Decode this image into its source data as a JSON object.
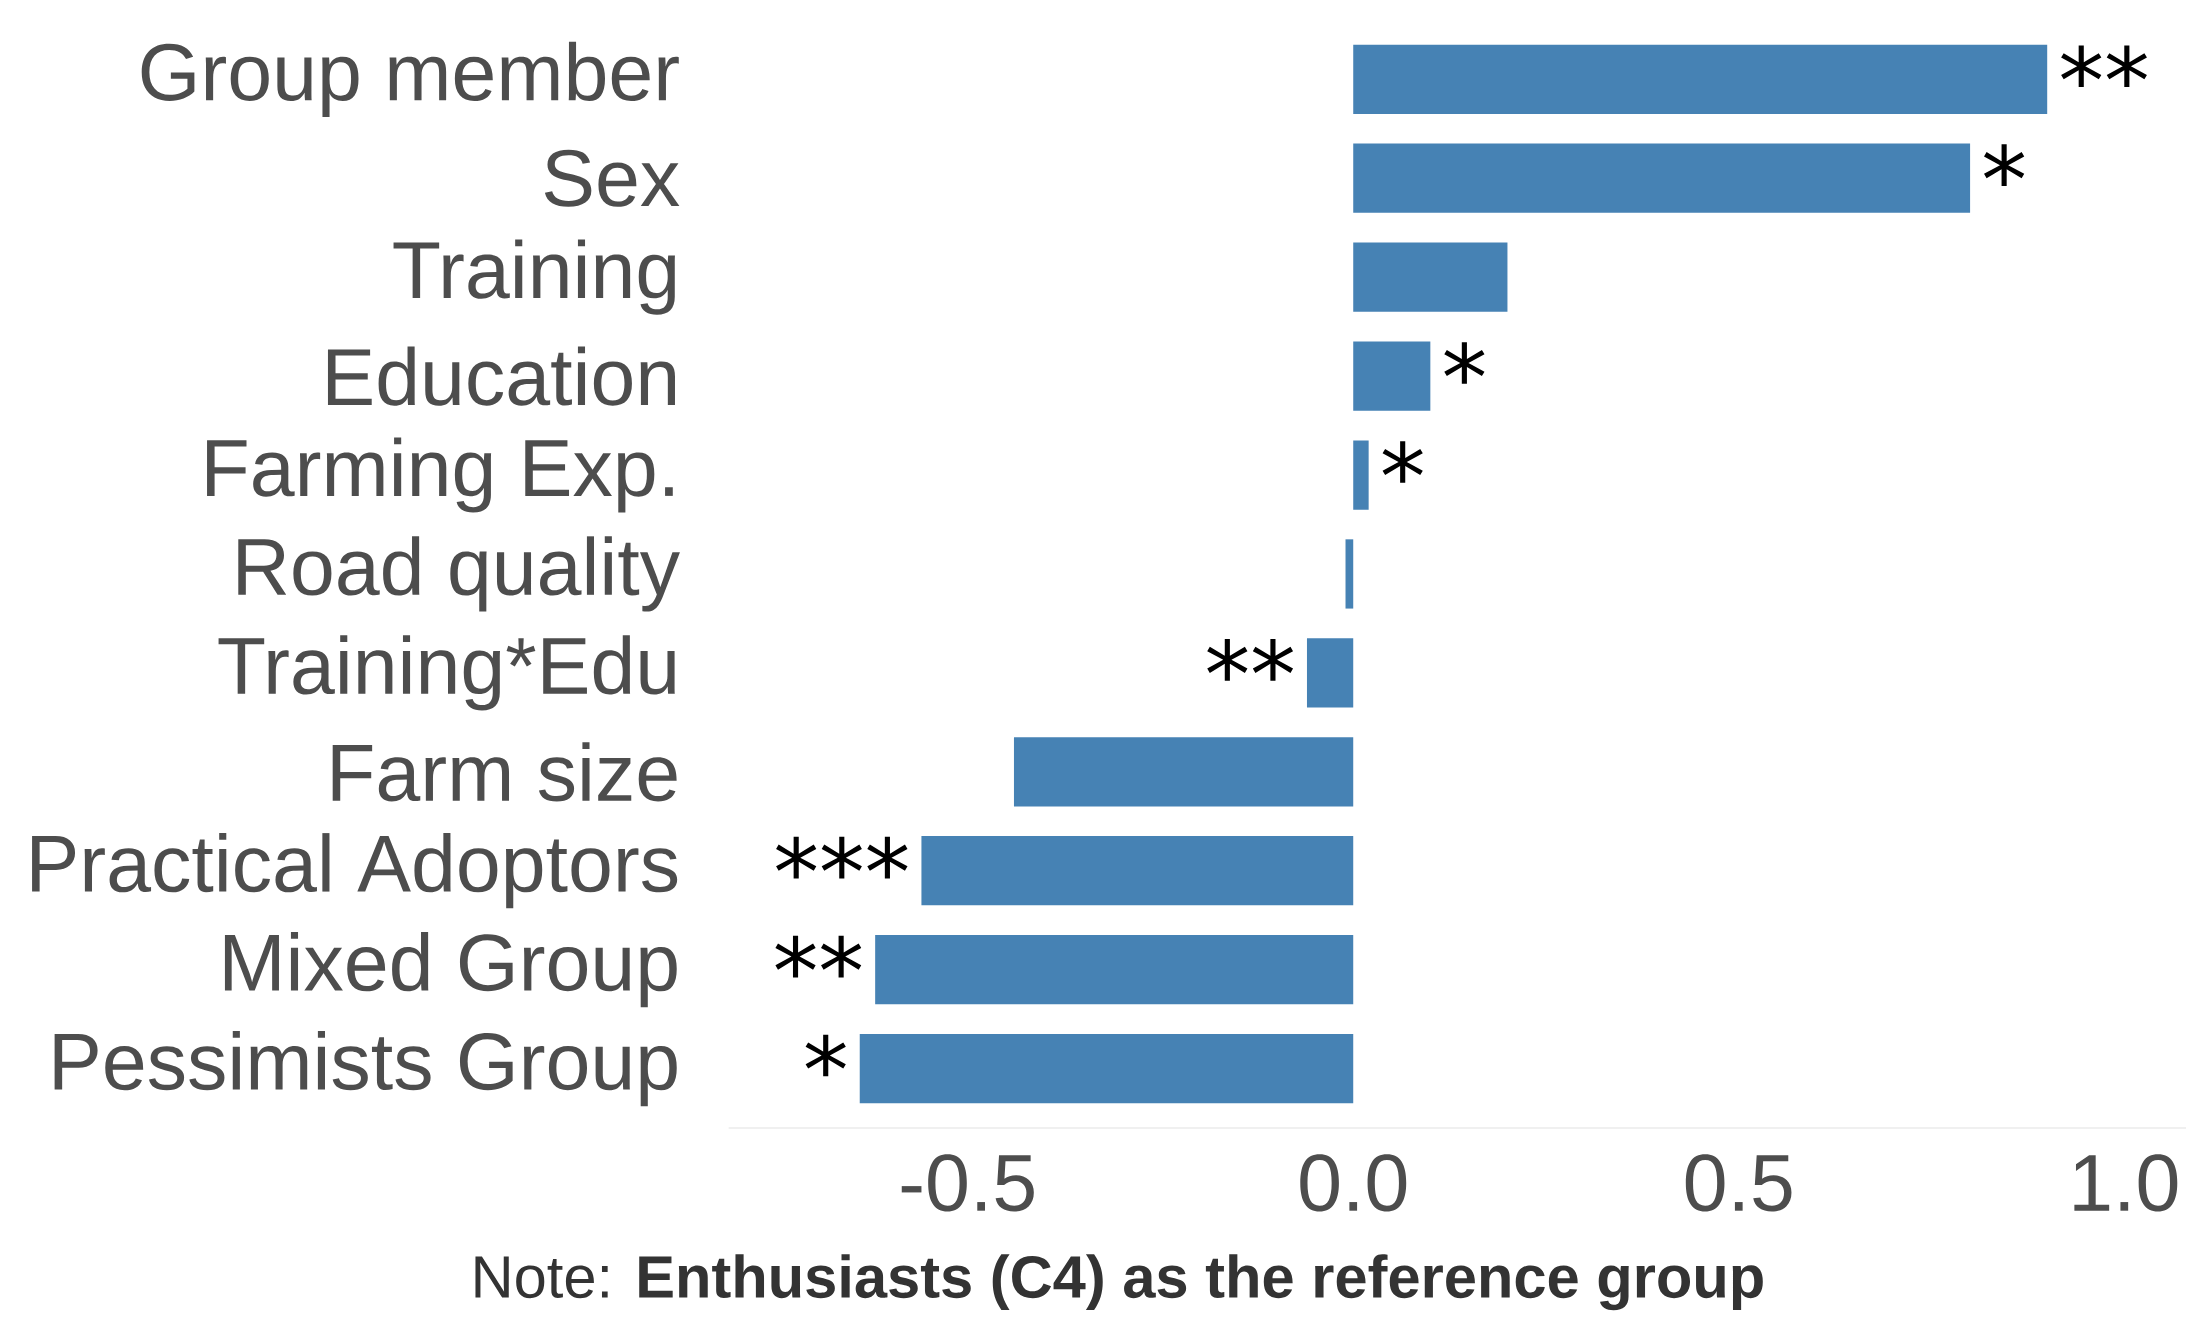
{
  "chart_data": {
    "type": "bar",
    "orientation": "horizontal",
    "categories": [
      "Group member",
      "Sex",
      "Training",
      "Education",
      "Farming Exp.",
      "Road quality",
      "Training*Edu",
      "Farm size",
      "Practical Adoptors",
      "Mixed Group",
      "Pessimists Group"
    ],
    "values": [
      0.9,
      0.8,
      0.2,
      0.1,
      0.02,
      -0.01,
      -0.06,
      -0.44,
      -0.56,
      -0.62,
      -0.64
    ],
    "value_labels": [
      "**",
      "*",
      null,
      "*",
      "*",
      null,
      "**",
      null,
      "***",
      "**",
      "*"
    ],
    "color": "#4682b4",
    "xlim": [
      -0.81,
      1.08
    ],
    "xticks": [
      -0.5,
      {
        "value": 0,
        "label": "0.0"
      },
      0.5,
      {
        "value": 1,
        "label": "1.0"
      }
    ],
    "grid": false,
    "annotations": [
      "Note: **Enthusiasts (C4) as the reference group**"
    ]
  }
}
